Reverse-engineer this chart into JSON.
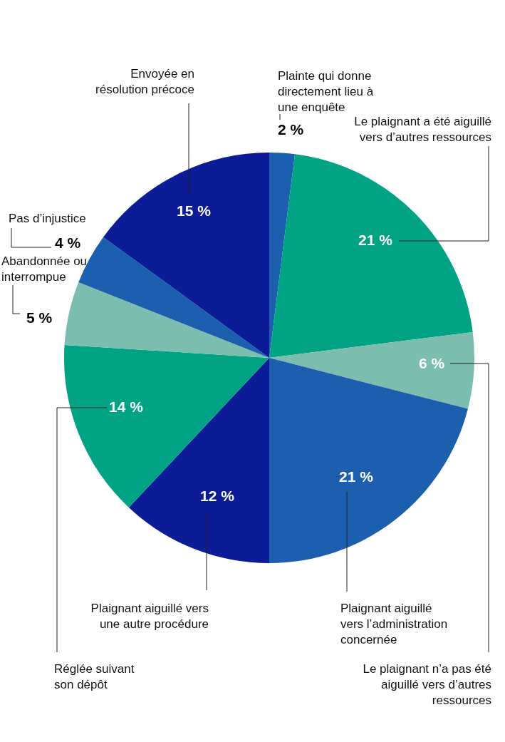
{
  "chart_data": {
    "type": "pie",
    "categories": [
      "Plainte qui donne directement lieu à une enquête",
      "Le plaignant a été aiguillé vers d’autres ressources",
      "Le plaignant n’a pas été aiguillé vers d’autres ressources",
      "Plaignant aiguillé vers l’administration concernée",
      "Plaignant aiguillé vers une autre procédure",
      "Réglée suivant son dépôt",
      "Abandonnée ou interrompue",
      "Pas d’injustice",
      "Envoyée en résolution précoce"
    ],
    "values": [
      2,
      21,
      6,
      21,
      12,
      14,
      5,
      4,
      15
    ],
    "value_labels": [
      "2 %",
      "21 %",
      "6 %",
      "21 %",
      "12 %",
      "14 %",
      "5 %",
      "4 %",
      "15 %"
    ],
    "colors": [
      "#1c5fae",
      "#00a383",
      "#7bbdae",
      "#1c5fae",
      "#0b1c96",
      "#00a383",
      "#7bbdae",
      "#1c5fae",
      "#0b1c96"
    ],
    "legend": false
  }
}
